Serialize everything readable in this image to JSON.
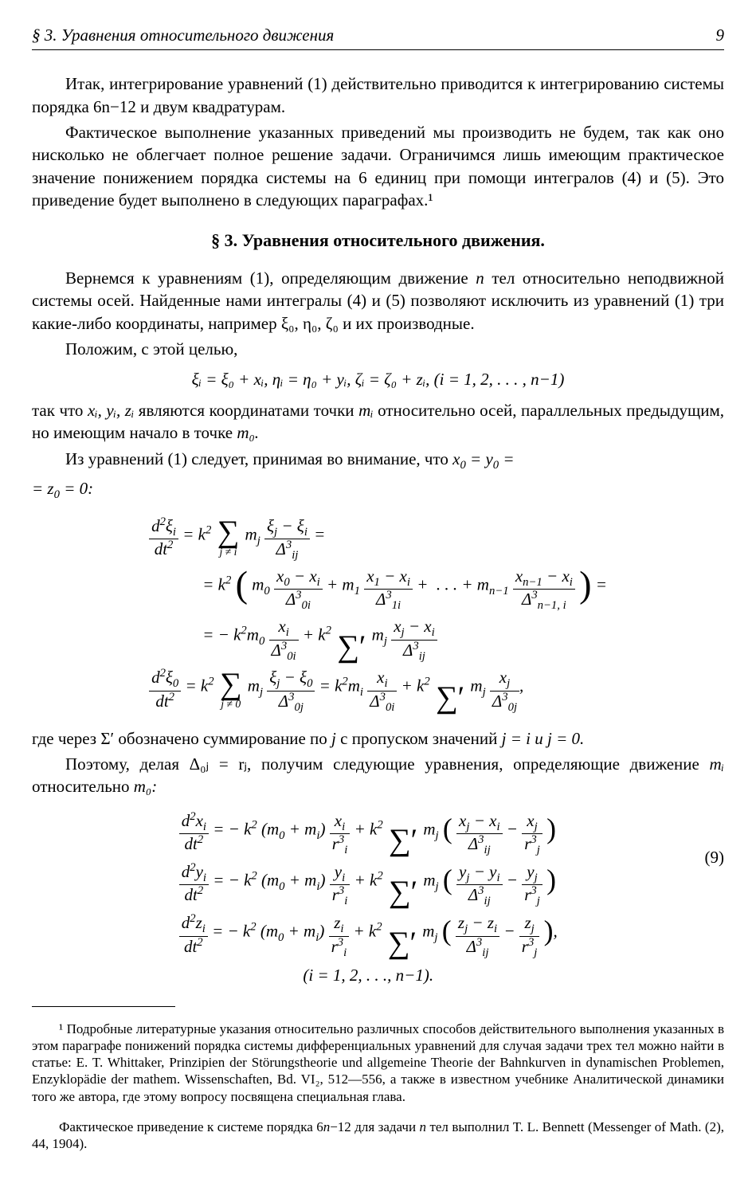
{
  "header": {
    "section_label": "§ 3. Уравнения относительного движения",
    "page_number": "9"
  },
  "para": {
    "p1": "Итак, интегрирование уравнений (1) действительно приводится к интегрированию системы порядка 6n−12 и двум квадратурам.",
    "p2": "Фактическое выполнение указанных приведений мы производить не будем, так как оно нисколько не облегчает полное решение задачи. Ограничимся лишь имеющим практическое значение понижением порядка системы на 6 единиц при помощи интегралов (4) и (5). Это приведение будет выполнено в следующих параграфах.¹",
    "section_title": "§ 3. Уравнения относительного движения.",
    "p3a": "Вернемся к уравнениям (1), определяющим движение ",
    "p3b": " тел относительно неподвижной системы осей. Найденные нами интегралы (4) и (5) позволяют исключить из уравнений (1) три какие-либо координаты, например ξ₀, η₀, ζ₀ и их производные.",
    "p4": "Положим, с этой целью,",
    "p5a": "так что ",
    "p5b": " являются координатами точки ",
    "p5c": " относительно осей, параллельных предыдущим, но имеющим начало в точке ",
    "p6a": "Из уравнений (1) следует, принимая во внимание, что ",
    "p7a": "где через Σ′ обозначено суммирование по ",
    "p7b": " с пропуском значений ",
    "p8a": "Поэтому, делая Δ₀ⱼ = rⱼ, получим следующие уравнения, определяющие движение ",
    "p8b": " относительно "
  },
  "math": {
    "defs_line": "ξᵢ = ξ₀ + xᵢ,    ηᵢ = η₀ + yᵢ,    ζᵢ = ζ₀ + zᵢ,      (i = 1, 2, . . . , n−1)",
    "zeros": "x₀ = y₀ = z₀ = 0:",
    "ij_cond": "j = i и j = 0.",
    "eq_number_9": "(9)",
    "index_line": "(i = 1, 2, . . ., n−1)."
  },
  "inline": {
    "n": "n",
    "xi_yi_zi": "xᵢ, yᵢ, zᵢ",
    "mi": "mᵢ",
    "m0": "m₀",
    "m0_dot": "m₀.",
    "m0_colon": "m₀:",
    "j": "j"
  },
  "footnote": {
    "f1": "¹ Подробные литературные указания относительно различных способов действительного выполнения указанных в этом параграфе понижений порядка системы дифференциальных уравнений для случая задачи трех тел можно найти в статье: E. T. Whittaker, Prinzipien der Störungstheorie und allgemeine Theorie der Bahnkurven in dynamischen Problemen, Enzyklopädie der mathem. Wissenschaften, Bd. VI₂, 512—556, а также в известном учебнике Аналитической динамики того же автора, где этому вопросу посвящена специальная глава.",
    "f2a": "Фактическое приведение к системе порядка 6",
    "f2b": "−12 для задачи ",
    "f2c": " тел выполнил T. L. Bennett (Messenger of Math. (2), 44, 1904)."
  }
}
